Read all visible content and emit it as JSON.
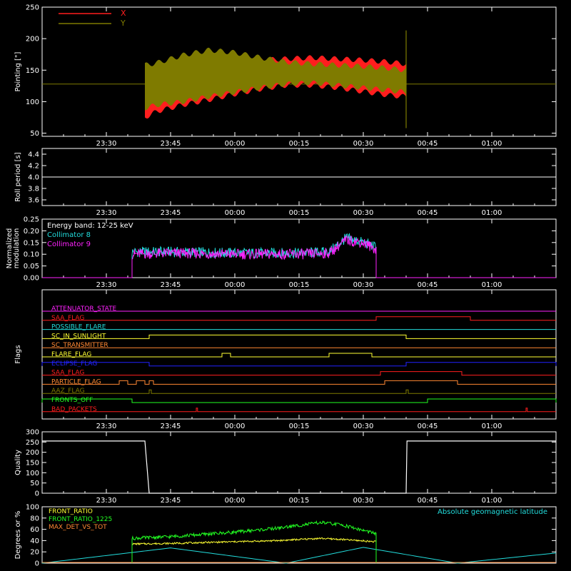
{
  "colors": {
    "background": "#000000",
    "axis": "#ffffff",
    "red": "#ff1e1e",
    "olive": "#7f7b00",
    "cyan": "#22dddd",
    "magenta": "#ff22ff",
    "white": "#ffffff",
    "yellow": "#ffff33",
    "green": "#22ff22",
    "orange": "#ff8833",
    "blue": "#2222ff"
  },
  "chart_data": [
    {
      "id": "pointing",
      "type": "area",
      "ylabel": "Pointing [\"]",
      "xlim": [
        -45,
        75
      ],
      "ylim": [
        45,
        250
      ],
      "yticks": [
        50,
        100,
        150,
        200,
        250
      ],
      "xticks": [
        "23:30",
        "23:45",
        "00:00",
        "00:15",
        "00:30",
        "00:45",
        "01:00"
      ],
      "xtick_minutes": [
        -30,
        -15,
        0,
        15,
        30,
        45,
        60
      ],
      "data_range": [
        -21,
        40
      ],
      "baseline": 128,
      "series": [
        {
          "name": "X",
          "color": "red",
          "x": [
            -21,
            -18,
            -12,
            -6,
            0,
            6,
            12,
            18,
            24,
            30,
            36,
            40
          ],
          "low": [
            75,
            85,
            95,
            103,
            112,
            120,
            126,
            126,
            122,
            116,
            110,
            108
          ],
          "high": [
            150,
            150,
            154,
            158,
            162,
            166,
            168,
            170,
            168,
            166,
            163,
            160
          ]
        },
        {
          "name": "Y",
          "color": "olive",
          "x": [
            -21,
            -18,
            -12,
            -6,
            0,
            6,
            12,
            18,
            24,
            30,
            36,
            40
          ],
          "low": [
            90,
            95,
            100,
            108,
            115,
            122,
            128,
            130,
            126,
            122,
            118,
            115
          ],
          "high": [
            158,
            162,
            174,
            182,
            178,
            170,
            163,
            160,
            158,
            156,
            153,
            150
          ]
        }
      ],
      "spike": {
        "x": 40,
        "low": 58,
        "high": 213
      }
    },
    {
      "id": "roll-period",
      "type": "line",
      "ylabel": "Roll period [s]",
      "xlim": [
        -45,
        75
      ],
      "ylim": [
        3.5,
        4.5
      ],
      "yticks": [
        "3.6",
        "3.8",
        "4.0",
        "4.2",
        "4.4"
      ],
      "ytick_values": [
        3.6,
        3.8,
        4.0,
        4.2,
        4.4
      ],
      "xticks": [
        "23:30",
        "23:45",
        "00:00",
        "00:15",
        "00:30",
        "00:45",
        "01:00"
      ],
      "xtick_minutes": [
        -30,
        -15,
        0,
        15,
        30,
        45,
        60
      ],
      "value": 4.0
    },
    {
      "id": "modulation",
      "type": "line",
      "ylabel_lines": [
        "Normalized",
        "modulation"
      ],
      "xlim": [
        -45,
        75
      ],
      "ylim": [
        0.0,
        0.25
      ],
      "yticks": [
        "0.00",
        "0.05",
        "0.10",
        "0.15",
        "0.20",
        "0.25"
      ],
      "ytick_values": [
        0.0,
        0.05,
        0.1,
        0.15,
        0.2,
        0.25
      ],
      "xticks": [
        "23:30",
        "23:45",
        "00:00",
        "00:15",
        "00:30",
        "00:45",
        "01:00"
      ],
      "xtick_minutes": [
        -30,
        -15,
        0,
        15,
        30,
        45,
        60
      ],
      "data_range": [
        -24,
        33
      ],
      "annotation": "Energy band: 12-25 keV",
      "series": [
        {
          "name": "Collimator 8",
          "color": "cyan",
          "x": [
            -24,
            -15,
            0,
            15,
            22,
            26,
            30,
            33
          ],
          "y": [
            0.11,
            0.11,
            0.105,
            0.105,
            0.11,
            0.17,
            0.15,
            0.13
          ]
        },
        {
          "name": "Collimator 9",
          "color": "magenta",
          "x": [
            -24,
            -15,
            0,
            15,
            22,
            26,
            30,
            33
          ],
          "y": [
            0.1,
            0.105,
            0.1,
            0.1,
            0.105,
            0.16,
            0.15,
            0.12
          ]
        }
      ]
    },
    {
      "id": "flags",
      "type": "line",
      "ylabel": "Flags",
      "xlim": [
        -45,
        75
      ],
      "xticks": [
        "23:30",
        "23:45",
        "00:00",
        "00:15",
        "00:30",
        "00:45",
        "01:00"
      ],
      "xtick_minutes": [
        -30,
        -15,
        0,
        15,
        30,
        45,
        60
      ],
      "series": [
        {
          "name": "ATTENUATOR_STATE",
          "color": "magenta",
          "high": []
        },
        {
          "name": "SAA_FLAG",
          "color": "red",
          "high": [
            [
              33,
              55
            ]
          ]
        },
        {
          "name": "POSSIBLE_FLARE",
          "color": "cyan",
          "high": []
        },
        {
          "name": "SC_IN_SUNLIGHT",
          "color": "yellow",
          "high": [
            [
              -20,
              40
            ]
          ]
        },
        {
          "name": "SC_TRANSMITTER",
          "color": "orange",
          "high": []
        },
        {
          "name": "FLARE_FLAG",
          "color": "yellow",
          "high": [
            [
              -3,
              -1
            ],
            [
              22,
              32
            ]
          ]
        },
        {
          "name": "ECLIPSE_FLAG",
          "color": "blue",
          "high": [
            [
              -45,
              -20
            ],
            [
              40,
              75
            ]
          ]
        },
        {
          "name": "SAA_FLAG",
          "color": "red",
          "high": [
            [
              34,
              53
            ]
          ]
        },
        {
          "name": "PARTICLE_FLAG",
          "color": "orange",
          "high": [
            [
              -27,
              -25
            ],
            [
              -23,
              -21
            ],
            [
              -20,
              -19
            ],
            [
              35,
              52
            ]
          ]
        },
        {
          "name": "AAZ_FLAG",
          "color": "olive",
          "high": [
            [
              -20,
              -19.5
            ],
            [
              40,
              40.5
            ]
          ]
        },
        {
          "name": "FRONTS_OFF",
          "color": "green",
          "high": [
            [
              -45,
              -24
            ],
            [
              45,
              75
            ]
          ]
        },
        {
          "name": "BAD_PACKETS",
          "color": "red",
          "high": [
            [
              -9,
              -8.7
            ],
            [
              68,
              68.3
            ]
          ]
        }
      ]
    },
    {
      "id": "quality",
      "type": "line",
      "ylabel": "Quality",
      "xlim": [
        -45,
        75
      ],
      "ylim": [
        0,
        300
      ],
      "yticks": [
        "0",
        "50",
        "100",
        "150",
        "200",
        "250",
        "300"
      ],
      "ytick_values": [
        0,
        50,
        100,
        150,
        200,
        250,
        300
      ],
      "xticks": [
        "23:30",
        "23:45",
        "00:00",
        "00:15",
        "00:30",
        "00:45",
        "01:00"
      ],
      "xtick_minutes": [
        -30,
        -15,
        0,
        15,
        30,
        45,
        60
      ],
      "x": [
        -45,
        -21,
        -20,
        40,
        40.2,
        75
      ],
      "y": [
        255,
        255,
        0,
        0,
        255,
        255
      ]
    },
    {
      "id": "ratios",
      "type": "line",
      "ylabel": "Degrees or %",
      "xlim": [
        -45,
        75
      ],
      "ylim": [
        0,
        100
      ],
      "yticks": [
        "0",
        "20",
        "40",
        "60",
        "80",
        "100"
      ],
      "ytick_values": [
        0,
        20,
        40,
        60,
        80,
        100
      ],
      "right_label": "Absolute geomagnetic latitude",
      "series": [
        {
          "name": "FRONT_RATIO",
          "color": "yellow",
          "x": [
            -24,
            -15,
            0,
            10,
            20,
            25,
            33
          ],
          "y": [
            34,
            35,
            38,
            40,
            44,
            42,
            38
          ]
        },
        {
          "name": "FRONT_RATIO_1225",
          "color": "green",
          "x": [
            -24,
            -15,
            0,
            10,
            20,
            25,
            33
          ],
          "y": [
            44,
            47,
            55,
            62,
            72,
            68,
            52
          ]
        },
        {
          "name": "MAX_DET_VS_TOT",
          "color": "orange",
          "x": [
            -45,
            75
          ],
          "y": [
            0,
            0
          ]
        }
      ],
      "latitude": {
        "color": "cyan",
        "x": [
          -45,
          -15,
          12,
          30,
          52,
          75
        ],
        "y": [
          0,
          27,
          0,
          28,
          0,
          18
        ]
      }
    }
  ]
}
